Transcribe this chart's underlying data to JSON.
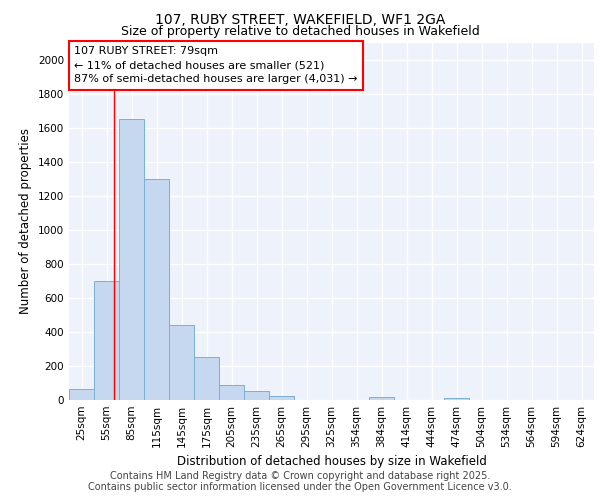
{
  "title1": "107, RUBY STREET, WAKEFIELD, WF1 2GA",
  "title2": "Size of property relative to detached houses in Wakefield",
  "xlabel": "Distribution of detached houses by size in Wakefield",
  "ylabel": "Number of detached properties",
  "bin_labels": [
    "25sqm",
    "55sqm",
    "85sqm",
    "115sqm",
    "145sqm",
    "175sqm",
    "205sqm",
    "235sqm",
    "265sqm",
    "295sqm",
    "325sqm",
    "354sqm",
    "384sqm",
    "414sqm",
    "444sqm",
    "474sqm",
    "504sqm",
    "534sqm",
    "564sqm",
    "594sqm",
    "624sqm"
  ],
  "values": [
    65,
    700,
    1650,
    1300,
    440,
    255,
    90,
    55,
    25,
    0,
    0,
    0,
    20,
    0,
    0,
    10,
    0,
    0,
    0,
    0,
    0
  ],
  "bar_color": "#c5d8f0",
  "bar_edge_color": "#7aafd4",
  "ylim": [
    0,
    2100
  ],
  "yticks": [
    0,
    200,
    400,
    600,
    800,
    1000,
    1200,
    1400,
    1600,
    1800,
    2000
  ],
  "red_line_x": 79,
  "annotation_text": "107 RUBY STREET: 79sqm\n← 11% of detached houses are smaller (521)\n87% of semi-detached houses are larger (4,031) →",
  "footer1": "Contains HM Land Registry data © Crown copyright and database right 2025.",
  "footer2": "Contains public sector information licensed under the Open Government Licence v3.0.",
  "background_color": "#eef2fa",
  "grid_color": "#ffffff",
  "title_fontsize": 10,
  "subtitle_fontsize": 9,
  "axis_label_fontsize": 8.5,
  "tick_fontsize": 7.5,
  "annotation_fontsize": 8,
  "footer_fontsize": 7
}
